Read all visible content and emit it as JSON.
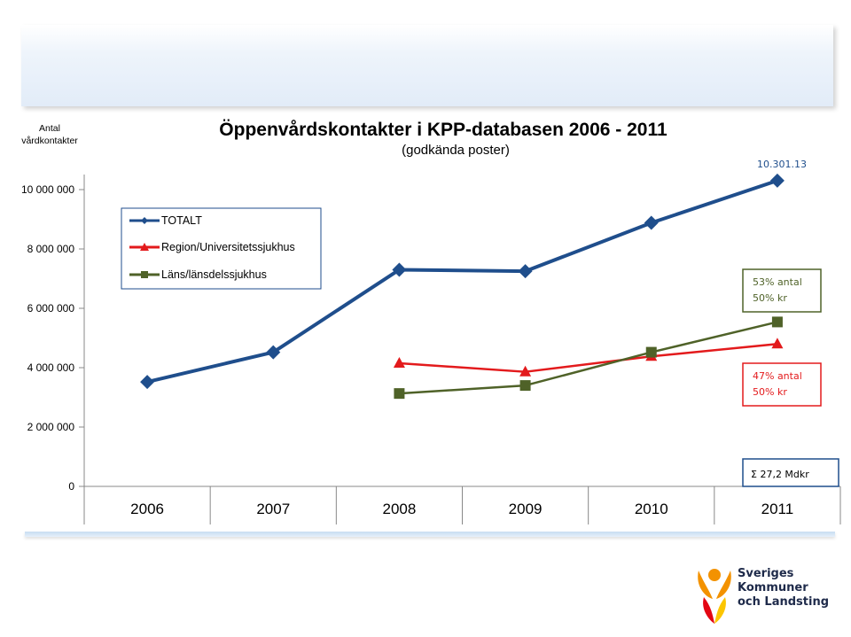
{
  "chart_data": {
    "type": "line",
    "title": "Öppenvårdskontakter i KPP-databasen 2006 - 2011",
    "subtitle": "(godkända poster)",
    "ylabel_line1": "Antal",
    "ylabel_line2": "vårdkontakter",
    "xlabel": "",
    "categories": [
      "2006",
      "2007",
      "2008",
      "2009",
      "2010",
      "2011"
    ],
    "ylim": [
      0,
      10000000
    ],
    "yticks": [
      {
        "value": 0,
        "label": "0"
      },
      {
        "value": 2000000,
        "label": "2 000 000"
      },
      {
        "value": 4000000,
        "label": "4 000 000"
      },
      {
        "value": 6000000,
        "label": "6 000 000"
      },
      {
        "value": 8000000,
        "label": "8 000 000"
      },
      {
        "value": 10000000,
        "label": "10 000 000"
      }
    ],
    "grid": false,
    "legend_position": "top-left",
    "series": [
      {
        "name": "TOTALT",
        "color": "#1f4e8c",
        "marker": "diamond",
        "values": [
          3520000,
          4520000,
          7300000,
          7250000,
          8880000,
          10301130
        ]
      },
      {
        "name": "Region/Universitetssjukhus",
        "color": "#e31a1c",
        "marker": "triangle",
        "values": [
          null,
          null,
          4150000,
          3860000,
          4380000,
          4800000
        ]
      },
      {
        "name": "Läns/länsdelssjukhus",
        "color": "#4f6228",
        "marker": "square",
        "values": [
          null,
          null,
          3130000,
          3400000,
          4520000,
          5540000
        ]
      }
    ],
    "annotations": {
      "top_value": "10.301.13",
      "box_lans": {
        "line1": "53%  antal",
        "line2": "50%  kr",
        "color": "#4f6228",
        "text_color": "#4f6228"
      },
      "box_region": {
        "line1": "47%  antal",
        "line2": "50%  kr",
        "color": "#e31a1c",
        "text_color": "#e31a1c"
      },
      "box_sum": {
        "text": "Σ 27,2 Mdkr",
        "color": "#1f4e8c",
        "text_color": "#000000"
      }
    }
  },
  "logo": {
    "line1": "Sveriges",
    "line2": "Kommuner",
    "line3": "och Landsting",
    "color_orange": "#f39200",
    "color_red": "#e30613",
    "color_yellow": "#fcc500"
  }
}
